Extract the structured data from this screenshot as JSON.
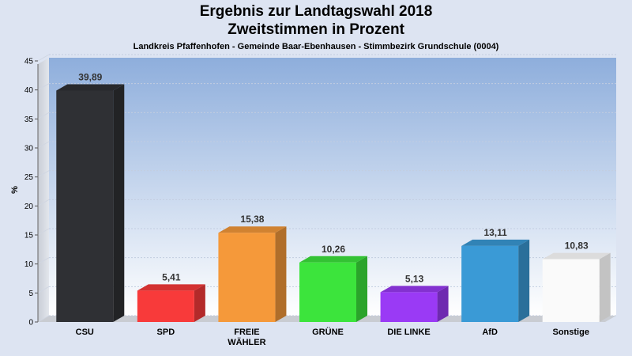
{
  "chart_data": {
    "type": "bar",
    "title": "Ergebnis zur Landtagswahl 2018",
    "subtitle": "Zweitstimmen in Prozent",
    "caption": "Landkreis Pfaffenhofen - Gemeinde Baar-Ebenhausen - Stimmbezirk Grundschule (0004)",
    "ylabel": "%",
    "ylim": [
      0,
      45
    ],
    "yticks": [
      0,
      5,
      10,
      15,
      20,
      25,
      30,
      35,
      40,
      45
    ],
    "categories": [
      [
        "CSU"
      ],
      [
        "SPD"
      ],
      [
        "FREIE",
        "WÄHLER"
      ],
      [
        "GRÜNE"
      ],
      [
        "DIE LINKE"
      ],
      [
        "AfD"
      ],
      [
        "Sonstige"
      ]
    ],
    "values": [
      39.89,
      5.41,
      15.38,
      10.26,
      5.13,
      13.11,
      10.83
    ],
    "value_labels": [
      "39,89",
      "5,41",
      "15,38",
      "10,26",
      "5,13",
      "13,11",
      "10,83"
    ],
    "colors": [
      "#2f3034",
      "#f83a3a",
      "#f5993a",
      "#3ce43c",
      "#9a3af5",
      "#3a9ad6",
      "#fafafa"
    ],
    "grid": true,
    "legend": "none"
  }
}
